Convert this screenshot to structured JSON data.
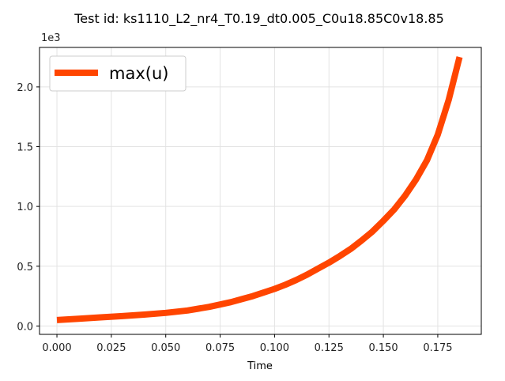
{
  "chart_data": {
    "type": "line",
    "title": "Test id:  ks1110_L2_nr4_T0.19_dt0.005_C0u18.85C0v18.85",
    "xlabel": "Time",
    "ylabel": "",
    "y_offset_label": "1e3",
    "xlim": [
      -0.008,
      0.195
    ],
    "ylim": [
      -0.07,
      2.33
    ],
    "x_ticks": [
      0.0,
      0.025,
      0.05,
      0.075,
      0.1,
      0.125,
      0.15,
      0.175
    ],
    "x_tick_labels": [
      "0.000",
      "0.025",
      "0.050",
      "0.075",
      "0.100",
      "0.125",
      "0.150",
      "0.175"
    ],
    "y_ticks": [
      0.0,
      0.5,
      1.0,
      1.5,
      2.0
    ],
    "y_tick_labels": [
      "0.0",
      "0.5",
      "1.0",
      "1.5",
      "2.0"
    ],
    "grid": true,
    "legend_position": "top-left",
    "series": [
      {
        "name": "max(u)",
        "color": "#ff4500",
        "x": [
          0.0,
          0.01,
          0.02,
          0.03,
          0.04,
          0.05,
          0.055,
          0.06,
          0.065,
          0.07,
          0.075,
          0.08,
          0.085,
          0.09,
          0.095,
          0.1,
          0.105,
          0.11,
          0.115,
          0.12,
          0.125,
          0.13,
          0.135,
          0.14,
          0.145,
          0.15,
          0.155,
          0.16,
          0.165,
          0.17,
          0.175,
          0.18,
          0.185
        ],
        "values": [
          0.05,
          0.06,
          0.072,
          0.083,
          0.095,
          0.11,
          0.12,
          0.13,
          0.145,
          0.16,
          0.18,
          0.2,
          0.225,
          0.25,
          0.28,
          0.31,
          0.345,
          0.385,
          0.43,
          0.48,
          0.53,
          0.585,
          0.645,
          0.715,
          0.79,
          0.88,
          0.975,
          1.09,
          1.225,
          1.385,
          1.6,
          1.89,
          2.25
        ]
      }
    ]
  }
}
